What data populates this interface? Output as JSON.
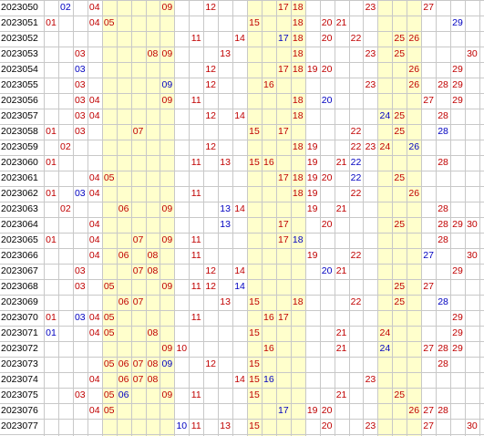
{
  "colors": {
    "red": "#c00000",
    "blue": "#0000c0",
    "band": "#ffffcc",
    "grid": "#c8c8c8"
  },
  "number_columns": 30,
  "shaded_columns": [
    5,
    6,
    7,
    8,
    9,
    15,
    16,
    17,
    18,
    24,
    25,
    26
  ],
  "rows": [
    {
      "period": "2023050",
      "red": [
        "04",
        "09",
        "12",
        "17",
        "18",
        "23",
        "27"
      ],
      "blue": [
        "02"
      ]
    },
    {
      "period": "2023051",
      "red": [
        "01",
        "04",
        "05",
        "15",
        "18",
        "20",
        "21"
      ],
      "blue": [
        "29"
      ]
    },
    {
      "period": "2023052",
      "red": [
        "11",
        "14",
        "18",
        "20",
        "22",
        "25",
        "26"
      ],
      "blue": [
        "17"
      ]
    },
    {
      "period": "2023053",
      "red": [
        "03",
        "08",
        "09",
        "13",
        "18",
        "23",
        "25",
        "30"
      ],
      "blue": []
    },
    {
      "period": "2023054",
      "red": [
        "12",
        "17",
        "18",
        "19",
        "20",
        "26",
        "29"
      ],
      "blue": [
        "03"
      ]
    },
    {
      "period": "2023055",
      "red": [
        "03",
        "12",
        "16",
        "23",
        "26",
        "28",
        "29"
      ],
      "blue": [
        "09"
      ]
    },
    {
      "period": "2023056",
      "red": [
        "03",
        "04",
        "09",
        "11",
        "18",
        "27",
        "29"
      ],
      "blue": [
        "20"
      ]
    },
    {
      "period": "2023057",
      "red": [
        "03",
        "04",
        "12",
        "14",
        "18",
        "25",
        "28"
      ],
      "blue": [
        "24"
      ]
    },
    {
      "period": "2023058",
      "red": [
        "01",
        "03",
        "07",
        "15",
        "17",
        "22",
        "25"
      ],
      "blue": [
        "28"
      ]
    },
    {
      "period": "2023059",
      "red": [
        "02",
        "12",
        "18",
        "19",
        "22",
        "23",
        "24"
      ],
      "blue": [
        "26"
      ]
    },
    {
      "period": "2023060",
      "red": [
        "01",
        "11",
        "13",
        "15",
        "16",
        "19",
        "21",
        "28"
      ],
      "blue": [
        "22"
      ]
    },
    {
      "period": "2023061",
      "red": [
        "04",
        "05",
        "17",
        "18",
        "19",
        "20",
        "25"
      ],
      "blue": [
        "22"
      ]
    },
    {
      "period": "2023062",
      "red": [
        "01",
        "04",
        "11",
        "18",
        "19",
        "22",
        "26"
      ],
      "blue": [
        "03"
      ]
    },
    {
      "period": "2023063",
      "red": [
        "02",
        "06",
        "09",
        "14",
        "19",
        "21",
        "28"
      ],
      "blue": [
        "13"
      ]
    },
    {
      "period": "2023064",
      "red": [
        "04",
        "17",
        "20",
        "25",
        "28",
        "29",
        "30"
      ],
      "blue": [
        "13"
      ]
    },
    {
      "period": "2023065",
      "red": [
        "01",
        "04",
        "07",
        "09",
        "11",
        "17",
        "28"
      ],
      "blue": [
        "18"
      ]
    },
    {
      "period": "2023066",
      "red": [
        "04",
        "06",
        "08",
        "11",
        "19",
        "22",
        "30"
      ],
      "blue": [
        "27"
      ]
    },
    {
      "period": "2023067",
      "red": [
        "03",
        "07",
        "08",
        "12",
        "14",
        "21",
        "29"
      ],
      "blue": [
        "20"
      ]
    },
    {
      "period": "2023068",
      "red": [
        "03",
        "05",
        "09",
        "11",
        "12",
        "25",
        "27"
      ],
      "blue": [
        "14"
      ]
    },
    {
      "period": "2023069",
      "red": [
        "06",
        "07",
        "13",
        "15",
        "18",
        "22",
        "25"
      ],
      "blue": [
        "28"
      ]
    },
    {
      "period": "2023070",
      "red": [
        "01",
        "04",
        "05",
        "11",
        "16",
        "17",
        "29"
      ],
      "blue": [
        "03"
      ]
    },
    {
      "period": "2023071",
      "red": [
        "04",
        "05",
        "08",
        "15",
        "21",
        "24",
        "29"
      ],
      "blue": [
        "01"
      ]
    },
    {
      "period": "2023072",
      "red": [
        "09",
        "10",
        "16",
        "21",
        "27",
        "28",
        "29"
      ],
      "blue": [
        "24"
      ]
    },
    {
      "period": "2023073",
      "red": [
        "05",
        "06",
        "07",
        "08",
        "12",
        "15",
        "28"
      ],
      "blue": [
        "09"
      ]
    },
    {
      "period": "2023074",
      "red": [
        "04",
        "06",
        "07",
        "08",
        "14",
        "15",
        "23"
      ],
      "blue": [
        "16"
      ]
    },
    {
      "period": "2023075",
      "red": [
        "03",
        "05",
        "09",
        "11",
        "15",
        "21",
        "25"
      ],
      "blue": [
        "06"
      ]
    },
    {
      "period": "2023076",
      "red": [
        "04",
        "05",
        "19",
        "20",
        "26",
        "27",
        "28"
      ],
      "blue": [
        "17"
      ]
    },
    {
      "period": "2023077",
      "red": [
        "11",
        "13",
        "15",
        "20",
        "23",
        "27",
        "30"
      ],
      "blue": [
        "10"
      ]
    }
  ]
}
